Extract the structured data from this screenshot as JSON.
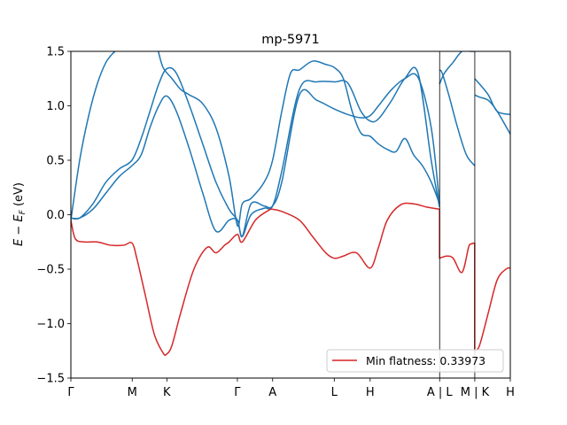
{
  "chart_data": {
    "type": "line",
    "title": "mp-5971",
    "xlabel": "",
    "ylabel": "E − E_F (eV)",
    "ylabel_parts": {
      "E": "E",
      "minus": " − ",
      "EF": "E",
      "F": "F",
      "unit": " (eV)"
    },
    "ylim": [
      -1.5,
      1.5
    ],
    "xlim": [
      0,
      1
    ],
    "yticks": [
      -1.5,
      -1.0,
      -0.5,
      0.0,
      0.5,
      1.0,
      1.5
    ],
    "ytick_labels": [
      "−1.5",
      "−1.0",
      "−0.5",
      "0.0",
      "0.5",
      "1.0",
      "1.5"
    ],
    "xticks": [
      0,
      0.1396,
      0.2184,
      0.3789,
      0.4592,
      0.5994,
      0.681,
      0.8392,
      0.9192,
      1.0
    ],
    "xtick_labels": [
      "Γ",
      "M",
      "K",
      "Γ",
      "A",
      "L",
      "H",
      "A | L",
      "M | K",
      "H"
    ],
    "segment_breaks": [
      0.8392,
      0.9192
    ],
    "grid": false,
    "legend": {
      "position": "lower-right",
      "entries": [
        "Min flatness: 0.33973"
      ]
    },
    "colors": {
      "bands": "#1f77b4",
      "flat_band": "#d62728",
      "axes": "#000000"
    },
    "series": [
      {
        "name": "",
        "color": "#1f77b4",
        "x": [
          0.0,
          0.02,
          0.05,
          0.08,
          0.11,
          0.139,
          0.16,
          0.18,
          0.2,
          0.218,
          0.24,
          0.27,
          0.3,
          0.33,
          0.36,
          0.379,
          0.39,
          0.41,
          0.44,
          0.459,
          0.48,
          0.52,
          0.56,
          0.6,
          0.63,
          0.66,
          0.681,
          0.7,
          0.73,
          0.76,
          0.79,
          0.82,
          0.839
        ],
        "y": [
          -0.03,
          -0.03,
          0.1,
          0.3,
          0.42,
          0.5,
          0.7,
          0.95,
          1.2,
          1.34,
          1.3,
          1.0,
          0.65,
          0.3,
          0.05,
          -0.05,
          -0.2,
          0.0,
          0.06,
          0.08,
          0.4,
          1.15,
          1.22,
          1.22,
          1.21,
          0.95,
          0.86,
          0.88,
          1.05,
          1.25,
          1.3,
          0.5,
          0.07
        ]
      },
      {
        "name": "",
        "color": "#1f77b4",
        "x": [
          0.0,
          0.02,
          0.05,
          0.08,
          0.11,
          0.139,
          0.16,
          0.18,
          0.2,
          0.218,
          0.24,
          0.27,
          0.3,
          0.33,
          0.36,
          0.379,
          0.39,
          0.41,
          0.44,
          0.459,
          0.48,
          0.52,
          0.56,
          0.6,
          0.63,
          0.66,
          0.681,
          0.7,
          0.73,
          0.76,
          0.79,
          0.82,
          0.839
        ],
        "y": [
          -0.03,
          -0.03,
          0.05,
          0.2,
          0.35,
          0.45,
          0.55,
          0.8,
          1.0,
          1.09,
          0.95,
          0.6,
          0.2,
          -0.15,
          -0.05,
          -0.05,
          -0.2,
          0.1,
          0.08,
          0.08,
          0.3,
          1.1,
          1.05,
          0.97,
          0.92,
          0.89,
          0.91,
          1.0,
          1.15,
          1.25,
          1.26,
          0.8,
          0.1
        ]
      },
      {
        "name": "",
        "color": "#1f77b4",
        "x": [
          0.0,
          0.02,
          0.04,
          0.06,
          0.08,
          0.1
        ],
        "y": [
          -0.05,
          0.5,
          0.9,
          1.2,
          1.4,
          1.5
        ]
      },
      {
        "name": "",
        "color": "#1f77b4",
        "x": [
          0.199,
          0.21,
          0.23,
          0.25,
          0.27,
          0.3,
          0.33,
          0.36,
          0.379,
          0.39,
          0.41,
          0.44,
          0.459,
          0.48,
          0.5,
          0.52,
          0.55,
          0.58,
          0.6,
          0.62,
          0.64,
          0.66,
          0.681,
          0.7,
          0.72,
          0.74,
          0.76,
          0.78,
          0.8,
          0.82,
          0.839
        ],
        "y": [
          1.5,
          1.35,
          1.25,
          1.15,
          1.1,
          1.02,
          0.8,
          0.35,
          -0.1,
          0.1,
          0.15,
          0.3,
          0.5,
          0.95,
          1.3,
          1.33,
          1.41,
          1.38,
          1.35,
          1.25,
          0.95,
          0.75,
          0.72,
          0.65,
          0.6,
          0.58,
          0.7,
          0.55,
          0.45,
          0.3,
          0.1
        ]
      },
      {
        "name": "",
        "color": "#1f77b4",
        "x": [
          0.839,
          0.845,
          0.86,
          0.88,
          0.9,
          0.919
        ],
        "y": [
          1.33,
          1.3,
          1.1,
          0.8,
          0.55,
          0.45
        ]
      },
      {
        "name": "",
        "color": "#1f77b4",
        "x": [
          0.839,
          0.85,
          0.87,
          0.89,
          0.91,
          0.919
        ],
        "y": [
          1.2,
          1.3,
          1.4,
          1.5,
          1.5,
          1.5
        ]
      },
      {
        "name": "",
        "color": "#1f77b4",
        "x": [
          0.919,
          0.93,
          0.95,
          0.97,
          1.0
        ],
        "y": [
          1.25,
          1.2,
          1.1,
          0.95,
          0.92
        ]
      },
      {
        "name": "",
        "color": "#1f77b4",
        "x": [
          0.919,
          0.93,
          0.95,
          0.97,
          1.0
        ],
        "y": [
          1.1,
          1.08,
          1.05,
          0.95,
          0.74
        ]
      },
      {
        "name": "Min flatness: 0.33973",
        "color": "#d62728",
        "x": [
          0.0,
          0.01,
          0.03,
          0.06,
          0.09,
          0.12,
          0.139,
          0.15,
          0.17,
          0.19,
          0.21,
          0.218,
          0.23,
          0.25,
          0.28,
          0.31,
          0.33,
          0.35,
          0.36,
          0.379,
          0.39,
          0.42,
          0.45,
          0.459,
          0.48,
          0.52,
          0.55,
          0.58,
          0.6,
          0.62,
          0.65,
          0.681,
          0.7,
          0.72,
          0.75,
          0.78,
          0.81,
          0.839,
          0.839,
          0.855,
          0.87,
          0.89,
          0.905,
          0.91,
          0.919,
          0.919,
          0.93,
          0.95,
          0.97,
          0.99,
          1.0
        ],
        "y": [
          -0.05,
          -0.22,
          -0.25,
          -0.25,
          -0.28,
          -0.28,
          -0.26,
          -0.4,
          -0.75,
          -1.1,
          -1.27,
          -1.28,
          -1.2,
          -0.9,
          -0.5,
          -0.3,
          -0.35,
          -0.28,
          -0.25,
          -0.18,
          -0.25,
          -0.05,
          0.04,
          0.05,
          0.03,
          -0.05,
          -0.2,
          -0.35,
          -0.4,
          -0.38,
          -0.35,
          -0.49,
          -0.3,
          -0.05,
          0.09,
          0.1,
          0.07,
          0.05,
          -0.4,
          -0.38,
          -0.4,
          -0.53,
          -0.3,
          -0.27,
          -0.26,
          -1.25,
          -1.2,
          -0.9,
          -0.6,
          -0.5,
          -0.49
        ]
      }
    ]
  }
}
